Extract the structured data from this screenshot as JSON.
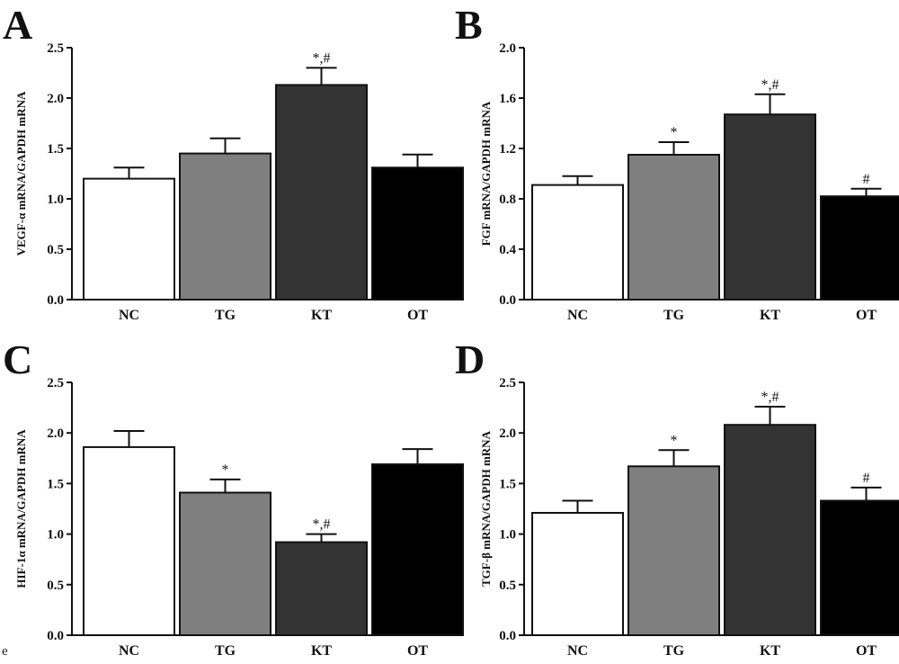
{
  "figure": {
    "stray_mark": "e"
  },
  "chart_data": [
    {
      "panel": "A",
      "type": "bar",
      "categories": [
        "NC",
        "TG",
        "KT",
        "OT"
      ],
      "values": [
        1.2,
        1.45,
        2.13,
        1.31
      ],
      "errors": [
        0.11,
        0.15,
        0.17,
        0.13
      ],
      "annotations": [
        "",
        "",
        "*,#",
        ""
      ],
      "ylabel": "VEGF-α mRNA/GAPDH mRNA",
      "ylim": [
        0,
        2.5
      ],
      "yticks": [
        "0.0",
        "0.5",
        "1.0",
        "1.5",
        "2.0",
        "2.5"
      ],
      "colors": [
        "#ffffff",
        "#7f7f7f",
        "#333333",
        "#000000"
      ]
    },
    {
      "panel": "B",
      "type": "bar",
      "categories": [
        "NC",
        "TG",
        "KT",
        "OT"
      ],
      "values": [
        0.91,
        1.15,
        1.47,
        0.82
      ],
      "errors": [
        0.07,
        0.1,
        0.16,
        0.06
      ],
      "annotations": [
        "",
        "*",
        "*,#",
        "#"
      ],
      "ylabel": "FGF mRNA/GAPDH mRNA",
      "ylim": [
        0,
        2.0
      ],
      "yticks": [
        "0.0",
        "0.4",
        "0.8",
        "1.2",
        "1.6",
        "2.0"
      ],
      "colors": [
        "#ffffff",
        "#7f7f7f",
        "#333333",
        "#000000"
      ]
    },
    {
      "panel": "C",
      "type": "bar",
      "categories": [
        "NC",
        "TG",
        "KT",
        "OT"
      ],
      "values": [
        1.86,
        1.41,
        0.92,
        1.69
      ],
      "errors": [
        0.16,
        0.13,
        0.08,
        0.15
      ],
      "annotations": [
        "",
        "*",
        "*,#",
        ""
      ],
      "ylabel": "HIF-1α mRNA/GAPDH mRNA",
      "ylim": [
        0,
        2.5
      ],
      "yticks": [
        "0.0",
        "0.5",
        "1.0",
        "1.5",
        "2.0",
        "2.5"
      ],
      "colors": [
        "#ffffff",
        "#7f7f7f",
        "#333333",
        "#000000"
      ]
    },
    {
      "panel": "D",
      "type": "bar",
      "categories": [
        "NC",
        "TG",
        "KT",
        "OT"
      ],
      "values": [
        1.21,
        1.67,
        2.08,
        1.33
      ],
      "errors": [
        0.12,
        0.16,
        0.18,
        0.13
      ],
      "annotations": [
        "",
        "*",
        "*,#",
        "#"
      ],
      "ylabel": "TGF-β mRNA/GAPDH mRNA",
      "ylim": [
        0,
        2.5
      ],
      "yticks": [
        "0.0",
        "0.5",
        "1.0",
        "1.5",
        "2.0",
        "2.5"
      ],
      "colors": [
        "#ffffff",
        "#7f7f7f",
        "#333333",
        "#000000"
      ]
    }
  ]
}
